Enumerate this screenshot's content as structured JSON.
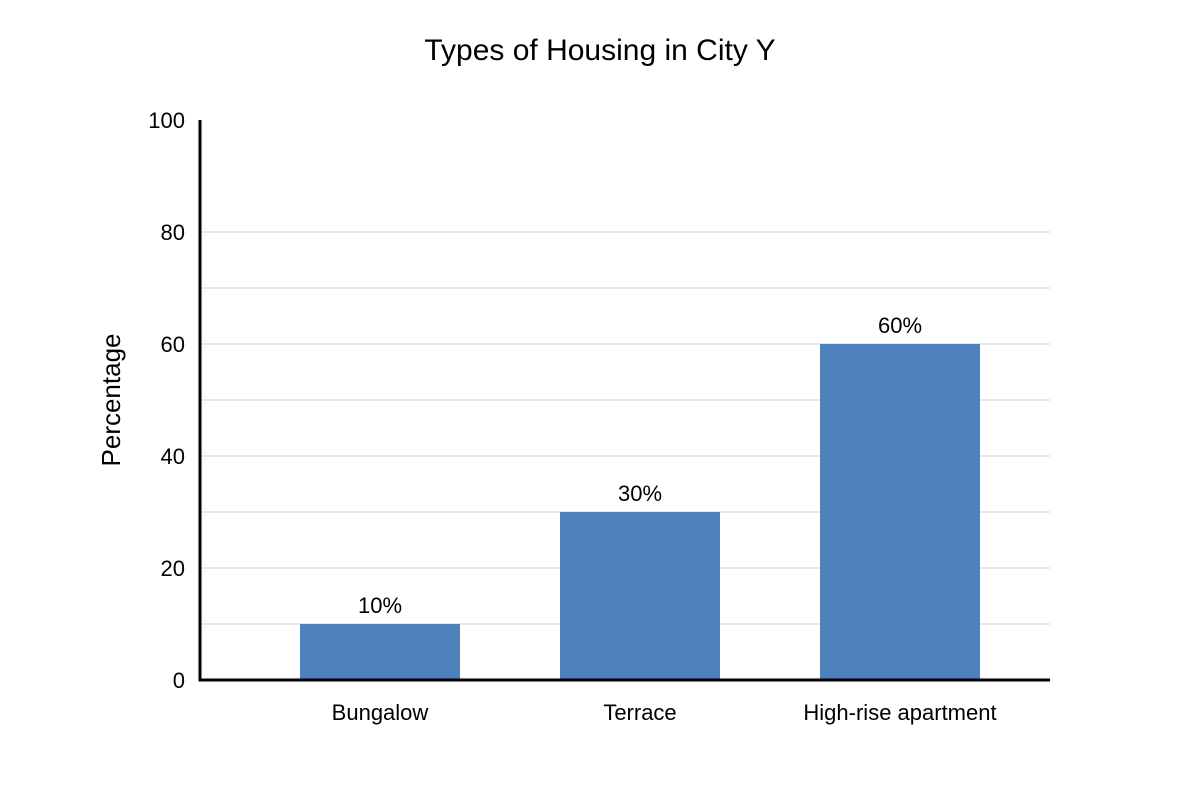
{
  "chart_data": {
    "type": "bar",
    "title": "Types of Housing in City Y",
    "xlabel": "",
    "ylabel": "Percentage",
    "categories": [
      "Bungalow",
      "Terrace",
      "High-rise apartment"
    ],
    "values": [
      10,
      30,
      60
    ],
    "data_labels": [
      "10%",
      "30%",
      "60%"
    ],
    "ylim": [
      0,
      100
    ],
    "y_ticks": [
      0,
      20,
      40,
      60,
      80,
      100
    ],
    "y_gridlines": [
      10,
      20,
      30,
      40,
      50,
      60,
      70,
      80
    ],
    "grid": true,
    "legend": "none",
    "bar_color": "#4f81bd"
  }
}
